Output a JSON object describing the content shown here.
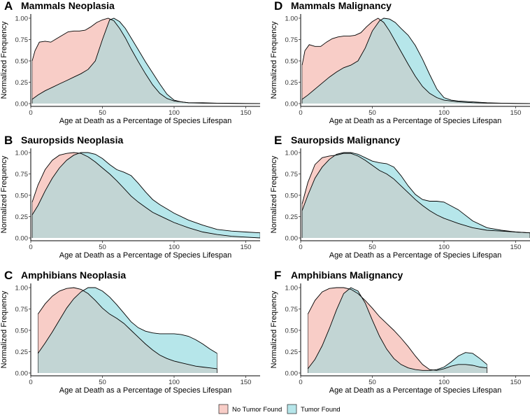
{
  "colors": {
    "no_tumor": "#f8cdc7",
    "tumor": "#b6e6ea",
    "overlap": "#c2d5d4",
    "line": "#000000"
  },
  "legend": [
    {
      "label": "No Tumor Found",
      "color": "#f8cdc7"
    },
    {
      "label": "Tumor Found",
      "color": "#b6e6ea"
    }
  ],
  "chart_data": [
    {
      "panel": "A",
      "title": "Mammals Neoplasia",
      "type": "area",
      "xlabel": "Age at Death as a Percentage of Species Lifespan",
      "ylabel": "Normalized Frequency",
      "xlim": [
        0,
        160
      ],
      "ylim": [
        0,
        1
      ],
      "xticks": [
        0,
        50,
        100,
        150
      ],
      "yticks": [
        "0.00",
        "0.25",
        "0.50",
        "0.75",
        "1.00"
      ],
      "series": [
        {
          "name": "No Tumor Found",
          "x": [
            1,
            3,
            6,
            10,
            14,
            18,
            22,
            26,
            30,
            34,
            38,
            42,
            46,
            50,
            54,
            58,
            62,
            66,
            70,
            75,
            80,
            85,
            90,
            95,
            100,
            105,
            110,
            120,
            130,
            140,
            150,
            160
          ],
          "y": [
            0.5,
            0.62,
            0.72,
            0.73,
            0.72,
            0.76,
            0.8,
            0.84,
            0.85,
            0.85,
            0.86,
            0.9,
            0.95,
            0.98,
            1.0,
            0.97,
            0.88,
            0.77,
            0.64,
            0.49,
            0.35,
            0.22,
            0.12,
            0.06,
            0.03,
            0.02,
            0.01,
            0.01,
            0.005,
            0.003,
            0.002,
            0.001
          ]
        },
        {
          "name": "Tumor Found",
          "x": [
            1,
            5,
            10,
            15,
            20,
            25,
            30,
            35,
            40,
            45,
            50,
            55,
            58,
            62,
            66,
            70,
            75,
            80,
            85,
            90,
            95,
            100,
            105,
            110,
            120,
            130,
            140,
            150,
            160
          ],
          "y": [
            0.05,
            0.1,
            0.15,
            0.19,
            0.23,
            0.27,
            0.31,
            0.35,
            0.4,
            0.5,
            0.75,
            0.98,
            1.0,
            0.96,
            0.88,
            0.77,
            0.63,
            0.49,
            0.36,
            0.23,
            0.11,
            0.04,
            0.02,
            0.01,
            0.005,
            0.003,
            0.002,
            0.001,
            0.0
          ]
        }
      ]
    },
    {
      "panel": "B",
      "title": "Sauropsids Neoplasia",
      "type": "area",
      "xlabel": "Age at Death as a Percentage of Species Lifespan",
      "ylabel": "Normalized Frequency",
      "xlim": [
        0,
        160
      ],
      "ylim": [
        0,
        1
      ],
      "xticks": [
        0,
        50,
        100,
        150
      ],
      "yticks": [
        "0.00",
        "0.25",
        "0.50",
        "0.75",
        "1.00"
      ],
      "series": [
        {
          "name": "No Tumor Found",
          "x": [
            1,
            5,
            10,
            15,
            20,
            25,
            30,
            35,
            40,
            45,
            50,
            55,
            60,
            65,
            70,
            75,
            80,
            85,
            90,
            95,
            100,
            110,
            120,
            130,
            140,
            150,
            160
          ],
          "y": [
            0.42,
            0.62,
            0.8,
            0.91,
            0.97,
            0.99,
            1.0,
            0.99,
            0.95,
            0.89,
            0.82,
            0.75,
            0.67,
            0.58,
            0.49,
            0.42,
            0.36,
            0.3,
            0.26,
            0.22,
            0.18,
            0.12,
            0.07,
            0.04,
            0.02,
            0.01,
            0.0
          ]
        },
        {
          "name": "Tumor Found",
          "x": [
            1,
            5,
            10,
            15,
            20,
            25,
            30,
            35,
            40,
            45,
            50,
            55,
            60,
            65,
            70,
            75,
            80,
            85,
            90,
            95,
            100,
            110,
            120,
            130,
            140,
            150,
            160
          ],
          "y": [
            0.27,
            0.38,
            0.55,
            0.7,
            0.82,
            0.91,
            0.97,
            1.0,
            1.0,
            0.98,
            0.93,
            0.86,
            0.8,
            0.77,
            0.73,
            0.64,
            0.54,
            0.45,
            0.39,
            0.34,
            0.29,
            0.21,
            0.15,
            0.1,
            0.08,
            0.07,
            0.06
          ]
        }
      ]
    },
    {
      "panel": "C",
      "title": "Amphibians Neoplasia",
      "type": "area",
      "xlabel": "Age at Death as a Percentage of Species Lifespan",
      "ylabel": "Normalized Frequency",
      "xlim": [
        0,
        160
      ],
      "ylim": [
        0,
        1
      ],
      "xticks": [
        0,
        50,
        100,
        150
      ],
      "yticks": [
        "0.00",
        "0.25",
        "0.50",
        "0.75",
        "1.00"
      ],
      "series": [
        {
          "name": "No Tumor Found",
          "x": [
            5,
            10,
            15,
            20,
            25,
            30,
            35,
            40,
            45,
            50,
            55,
            60,
            65,
            70,
            75,
            80,
            85,
            90,
            95,
            100,
            105,
            110,
            115,
            120,
            125,
            130
          ],
          "y": [
            0.69,
            0.81,
            0.9,
            0.96,
            0.99,
            1.0,
            0.98,
            0.93,
            0.85,
            0.76,
            0.69,
            0.64,
            0.58,
            0.5,
            0.42,
            0.34,
            0.27,
            0.21,
            0.17,
            0.14,
            0.12,
            0.1,
            0.08,
            0.07,
            0.06,
            0.05
          ]
        },
        {
          "name": "Tumor Found",
          "x": [
            5,
            10,
            15,
            20,
            25,
            30,
            35,
            40,
            45,
            50,
            55,
            60,
            65,
            70,
            75,
            80,
            85,
            90,
            95,
            100,
            105,
            110,
            115,
            120,
            125,
            130
          ],
          "y": [
            0.23,
            0.35,
            0.48,
            0.62,
            0.76,
            0.87,
            0.95,
            1.0,
            1.0,
            0.96,
            0.89,
            0.8,
            0.7,
            0.6,
            0.53,
            0.49,
            0.47,
            0.46,
            0.46,
            0.46,
            0.45,
            0.43,
            0.39,
            0.34,
            0.28,
            0.23
          ]
        }
      ]
    },
    {
      "panel": "D",
      "title": "Mammals Malignancy",
      "type": "area",
      "xlabel": "Age at Death as a Percentage of Species Lifespan",
      "ylabel": "Normalized Frequency",
      "xlim": [
        0,
        160
      ],
      "ylim": [
        0,
        1
      ],
      "xticks": [
        0,
        50,
        100,
        150
      ],
      "yticks": [
        "0.00",
        "0.25",
        "0.50",
        "0.75",
        "1.00"
      ],
      "series": [
        {
          "name": "No Tumor Found",
          "x": [
            1,
            3,
            6,
            10,
            14,
            18,
            22,
            26,
            30,
            34,
            38,
            42,
            46,
            50,
            54,
            58,
            62,
            66,
            70,
            75,
            80,
            85,
            90,
            95,
            100,
            105,
            110,
            120,
            130,
            140,
            150,
            160
          ],
          "y": [
            0.45,
            0.62,
            0.69,
            0.67,
            0.67,
            0.72,
            0.76,
            0.78,
            0.79,
            0.79,
            0.8,
            0.83,
            0.9,
            0.96,
            1.0,
            0.95,
            0.85,
            0.73,
            0.61,
            0.46,
            0.32,
            0.2,
            0.12,
            0.07,
            0.04,
            0.03,
            0.02,
            0.01,
            0.005,
            0.003,
            0.002,
            0.001
          ]
        },
        {
          "name": "Tumor Found",
          "x": [
            1,
            5,
            10,
            15,
            20,
            25,
            30,
            35,
            40,
            45,
            50,
            55,
            58,
            62,
            66,
            70,
            75,
            80,
            85,
            90,
            95,
            100,
            105,
            110,
            120,
            130,
            140,
            150,
            160
          ],
          "y": [
            0.05,
            0.1,
            0.17,
            0.24,
            0.31,
            0.37,
            0.42,
            0.45,
            0.5,
            0.65,
            0.85,
            0.97,
            1.0,
            0.99,
            0.95,
            0.88,
            0.8,
            0.68,
            0.52,
            0.34,
            0.17,
            0.07,
            0.04,
            0.03,
            0.02,
            0.01,
            0.005,
            0.002,
            0.0
          ]
        }
      ]
    },
    {
      "panel": "E",
      "title": "Sauropsids Malignancy",
      "type": "area",
      "xlabel": "Age at Death as a Percentage of Species Lifespan",
      "ylabel": "Normalized Frequency",
      "xlim": [
        0,
        160
      ],
      "ylim": [
        0,
        1
      ],
      "xticks": [
        0,
        50,
        100,
        150
      ],
      "yticks": [
        "0.00",
        "0.25",
        "0.50",
        "0.75",
        "1.00"
      ],
      "series": [
        {
          "name": "No Tumor Found",
          "x": [
            1,
            5,
            10,
            15,
            20,
            25,
            30,
            35,
            40,
            45,
            50,
            55,
            60,
            65,
            70,
            75,
            80,
            85,
            90,
            95,
            100,
            110,
            120,
            130,
            140,
            150,
            160
          ],
          "y": [
            0.4,
            0.65,
            0.86,
            0.94,
            0.96,
            0.97,
            0.99,
            0.99,
            0.96,
            0.91,
            0.85,
            0.79,
            0.75,
            0.69,
            0.61,
            0.53,
            0.45,
            0.38,
            0.32,
            0.27,
            0.23,
            0.17,
            0.12,
            0.09,
            0.08,
            0.07,
            0.06
          ]
        },
        {
          "name": "Tumor Found",
          "x": [
            1,
            5,
            10,
            15,
            20,
            25,
            30,
            35,
            40,
            45,
            50,
            55,
            60,
            65,
            70,
            75,
            80,
            85,
            90,
            95,
            100,
            110,
            120,
            130,
            140,
            150,
            160
          ],
          "y": [
            0.32,
            0.5,
            0.7,
            0.83,
            0.92,
            0.98,
            1.0,
            1.0,
            0.98,
            0.94,
            0.9,
            0.88,
            0.87,
            0.83,
            0.73,
            0.61,
            0.51,
            0.45,
            0.43,
            0.43,
            0.42,
            0.33,
            0.2,
            0.12,
            0.09,
            0.07,
            0.06
          ]
        }
      ]
    },
    {
      "panel": "F",
      "title": "Amphibians Malignancy",
      "type": "area",
      "xlabel": "Age at Death as a Percentage of Species Lifespan",
      "ylabel": "Normalized Frequency",
      "xlim": [
        0,
        160
      ],
      "ylim": [
        0,
        1
      ],
      "xticks": [
        0,
        50,
        100,
        150
      ],
      "yticks": [
        "0.00",
        "0.25",
        "0.50",
        "0.75",
        "1.00"
      ],
      "series": [
        {
          "name": "No Tumor Found",
          "x": [
            5,
            10,
            15,
            20,
            25,
            30,
            35,
            40,
            45,
            50,
            55,
            60,
            65,
            70,
            75,
            80,
            85,
            90,
            95,
            100,
            105,
            110,
            115,
            120,
            125,
            130
          ],
          "y": [
            0.69,
            0.85,
            0.95,
            0.99,
            1.0,
            1.0,
            0.98,
            0.93,
            0.85,
            0.76,
            0.66,
            0.58,
            0.5,
            0.41,
            0.31,
            0.2,
            0.1,
            0.04,
            0.03,
            0.05,
            0.08,
            0.1,
            0.1,
            0.09,
            0.07,
            0.06
          ]
        },
        {
          "name": "Tumor Found",
          "x": [
            5,
            10,
            15,
            20,
            25,
            30,
            35,
            40,
            45,
            50,
            55,
            60,
            65,
            70,
            75,
            80,
            85,
            90,
            95,
            100,
            105,
            110,
            115,
            120,
            125,
            130
          ],
          "y": [
            0.05,
            0.16,
            0.32,
            0.52,
            0.74,
            0.93,
            1.0,
            0.96,
            0.82,
            0.62,
            0.43,
            0.28,
            0.17,
            0.1,
            0.06,
            0.04,
            0.03,
            0.03,
            0.04,
            0.07,
            0.13,
            0.2,
            0.24,
            0.23,
            0.17,
            0.1
          ]
        }
      ]
    }
  ]
}
